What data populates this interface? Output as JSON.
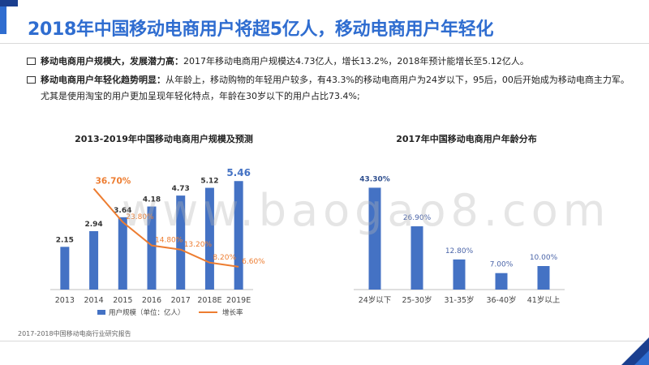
{
  "page": {
    "title": "2018年中国移动电商用户将超5亿人，移动电商用户年轻化",
    "source": "2017-2018中国移动电商行业研究报告",
    "watermark": "www.baogao8.com"
  },
  "bullets": [
    {
      "lead": "移动电商用户规模大，发展潜力高：",
      "text": "2017年移动电商用户规模达4.73亿人，增长13.2%，2018年预计能增长至5.12亿人。"
    },
    {
      "lead": "移动电商用户年轻化趋势明显：",
      "text": "从年龄上，移动购物的年轻用户较多，有43.3%的移动电商用户为24岁以下，95后，00后开始成为移动电商主力军。尤其是使用淘宝的用户更加呈现年轻化特点，年龄在30岁以下的用户占比73.4%;"
    }
  ],
  "colors": {
    "accent": "#2f6dd0",
    "bar": "#4472c4",
    "line": "#ed7d31",
    "dark": "#1a3f8f"
  },
  "chart_data": [
    {
      "type": "bar",
      "title": "2013-2019年中国移动电商用户规模及预测",
      "categories": [
        "2013",
        "2014",
        "2015",
        "2016",
        "2017",
        "2018E",
        "2019E"
      ],
      "series": [
        {
          "name": "用户规模（单位：亿人）",
          "type": "bar",
          "values": [
            2.15,
            2.94,
            3.64,
            4.18,
            4.73,
            5.12,
            5.46
          ],
          "labels": [
            "2.15",
            "2.94",
            "3.64",
            "4.18",
            "4.73",
            "5.12",
            "5.46"
          ]
        },
        {
          "name": "增长率",
          "type": "line",
          "values": [
            null,
            36.7,
            23.8,
            14.8,
            13.2,
            8.2,
            6.6
          ],
          "labels": [
            "",
            "36.70%",
            "23.80%",
            "14.80%",
            "13.20%",
            "8.20%",
            "6.60%"
          ]
        }
      ],
      "ylim": [
        0,
        6
      ],
      "y2lim": [
        0,
        40
      ],
      "legend": "bottom"
    },
    {
      "type": "bar",
      "title": "2017年中国移动电商用户年龄分布",
      "categories": [
        "24岁以下",
        "25-30岁",
        "31-35岁",
        "36-40岁",
        "41岁以上"
      ],
      "values": [
        43.3,
        26.9,
        12.8,
        7.0,
        10.0
      ],
      "labels": [
        "43.30%",
        "26.90%",
        "12.80%",
        "7.00%",
        "10.00%"
      ],
      "ylim": [
        0,
        50
      ]
    }
  ]
}
